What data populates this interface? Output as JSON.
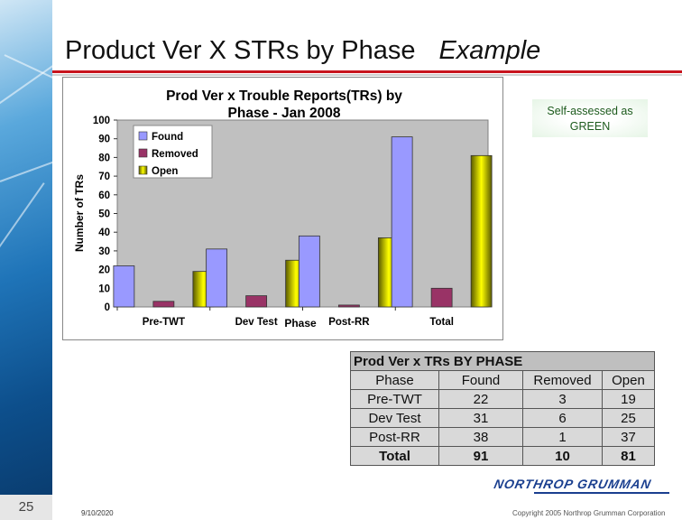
{
  "slide": {
    "title": "Product Ver X STRs by Phase",
    "title_suffix": "Example",
    "slide_number": "25",
    "date": "9/10/2020",
    "copyright": "Copyright 2005 Northrop Grumman Corporation",
    "logo_text": "NORTHROP GRUMMAN",
    "badge_line1": "Self-assessed as",
    "badge_line2": "GREEN",
    "accent_color": "#c8141e"
  },
  "chart_data": {
    "type": "bar",
    "title_line1": "Prod Ver x Trouble Reports(TRs) by",
    "title_line2": "Phase - Jan  2008",
    "xlabel": "Phase",
    "ylabel": "Number of TRs",
    "ylim": [
      0,
      100
    ],
    "yticks": [
      0,
      10,
      20,
      30,
      40,
      50,
      60,
      70,
      80,
      90,
      100
    ],
    "categories": [
      "Pre-TWT",
      "Dev Test",
      "Post-RR",
      "Total"
    ],
    "series": [
      {
        "name": "Found",
        "color": "#9999ff",
        "values": [
          22,
          31,
          38,
          91
        ]
      },
      {
        "name": "Removed",
        "color": "#993366",
        "values": [
          3,
          6,
          1,
          10
        ]
      },
      {
        "name": "Open",
        "color": "#c8c800",
        "values": [
          19,
          25,
          37,
          81
        ]
      }
    ],
    "legend_position": "top-left",
    "grid": false
  },
  "table": {
    "caption": "Prod Ver x TRs BY PHASE",
    "headers": [
      "Phase",
      "Found",
      "Removed",
      "Open"
    ],
    "rows": [
      [
        "Pre-TWT",
        "22",
        "3",
        "19"
      ],
      [
        "Dev Test",
        "31",
        "6",
        "25"
      ],
      [
        "Post-RR",
        "38",
        "1",
        "37"
      ]
    ],
    "total": [
      "Total",
      "91",
      "10",
      "81"
    ]
  }
}
